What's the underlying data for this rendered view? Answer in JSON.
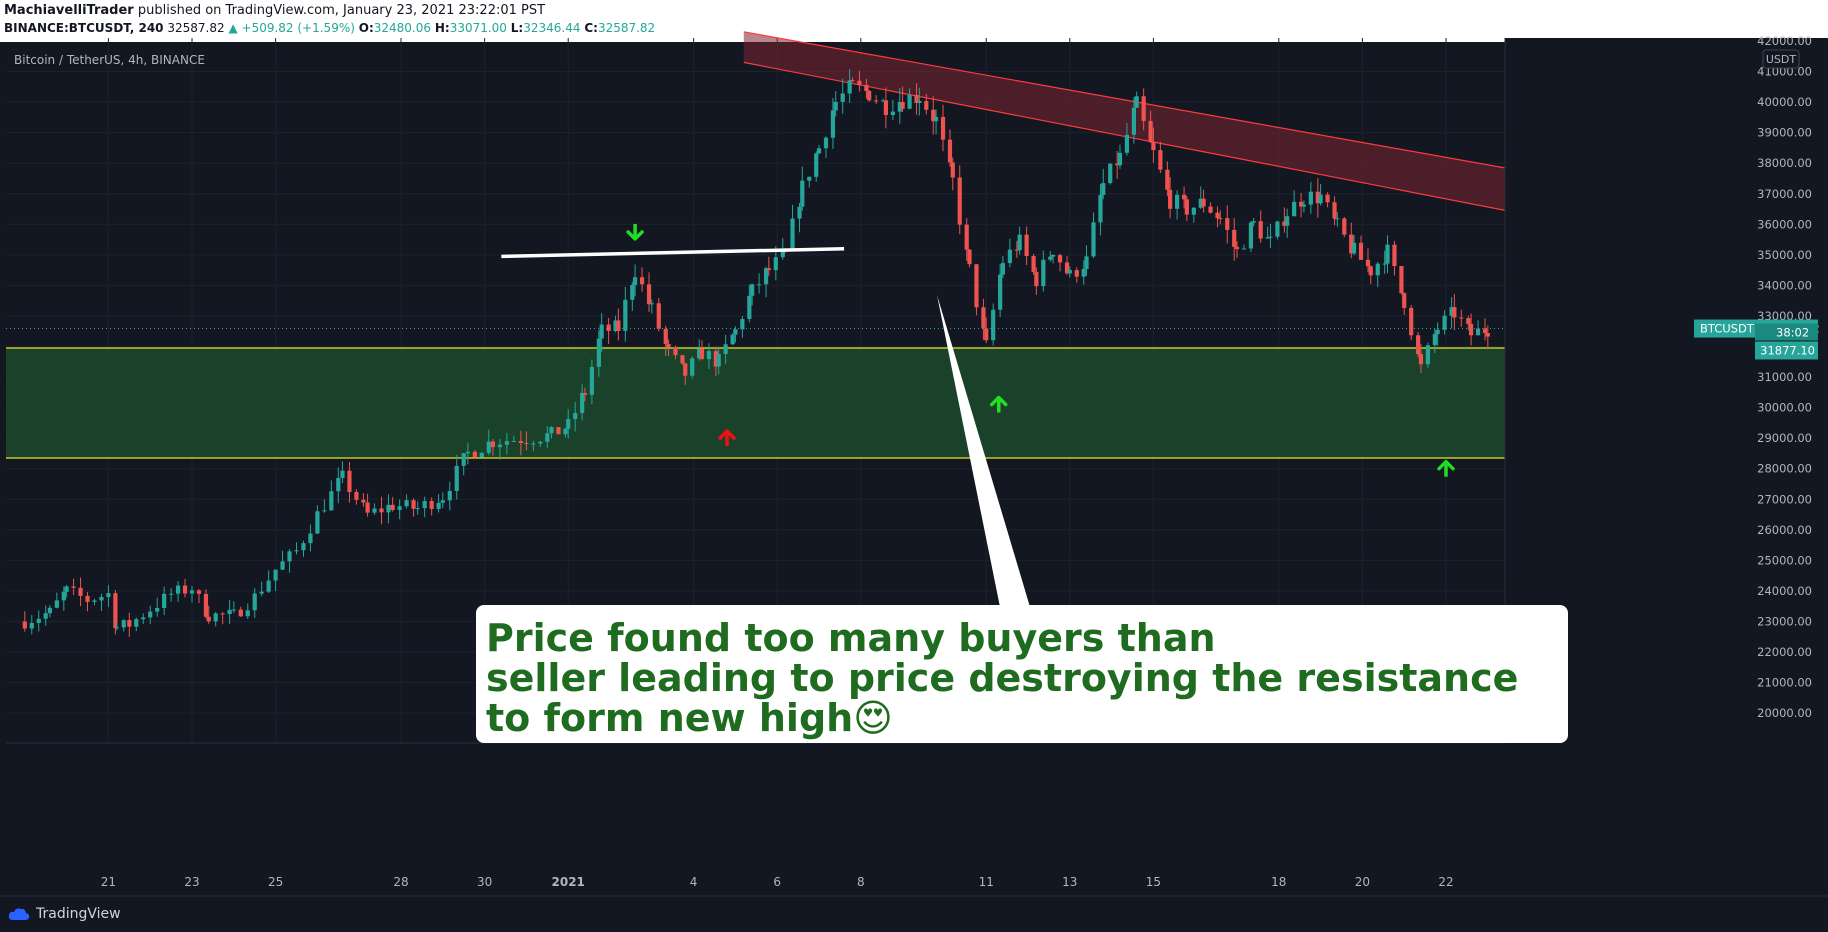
{
  "header": {
    "author": "MachiavelliTrader",
    "published_text": "published on TradingView.com, January 23, 2021 23:22:01 PST",
    "symbol_line": "BINANCE:BTCUSDT, 240",
    "last": "32587.82",
    "change": "▲ +509.82 (+1.59%)",
    "o_label": "O:",
    "o": "32480.06",
    "h_label": "H:",
    "h": "33071.00",
    "l_label": "L:",
    "l": "32346.44",
    "c_label": "C:",
    "c": "32587.82"
  },
  "chart_data": {
    "type": "candlestick",
    "title": "Bitcoin / TetherUS, 4h, BINANCE",
    "currency": "USDT",
    "timeframe": "4h",
    "ylim": [
      19200,
      42000
    ],
    "y_ticks": [
      20000,
      21000,
      22000,
      23000,
      24000,
      25000,
      26000,
      27000,
      28000,
      29000,
      30000,
      31000,
      32000,
      33000,
      34000,
      35000,
      36000,
      37000,
      38000,
      39000,
      40000,
      41000
    ],
    "y_tick_labels": [
      "20000.00",
      "21000.00",
      "22000.00",
      "23000.00",
      "24000.00",
      "25000.00",
      "26000.00",
      "27000.00",
      "28000.00",
      "29000.00",
      "30000.00",
      "31000.00",
      "32000.00",
      "33000.00",
      "34000.00",
      "35000.00",
      "36000.00",
      "37000.00",
      "38000.00",
      "39000.00",
      "40000.00",
      "41000.00"
    ],
    "top_tick_label": "42000.00",
    "x_ticks": [
      {
        "day": 21,
        "label": "21"
      },
      {
        "day": 23,
        "label": "23"
      },
      {
        "day": 25,
        "label": "25"
      },
      {
        "day": 28,
        "label": "28"
      },
      {
        "day": 30,
        "label": "30"
      },
      {
        "day": 32,
        "label": "2021"
      },
      {
        "day": 35,
        "label": "4"
      },
      {
        "day": 37,
        "label": "6"
      },
      {
        "day": 39,
        "label": "8"
      },
      {
        "day": 42,
        "label": "11"
      },
      {
        "day": 44,
        "label": "13"
      },
      {
        "day": 46,
        "label": "15"
      },
      {
        "day": 49,
        "label": "18"
      },
      {
        "day": 51,
        "label": "20"
      },
      {
        "day": 53,
        "label": "22"
      }
    ],
    "x_axis_note": "day index counted from Dec 1, 2020 (Jan 1 = 32)",
    "anchors": [
      [
        19.0,
        23000
      ],
      [
        19.6,
        23300
      ],
      [
        20.0,
        24000
      ],
      [
        20.5,
        23700
      ],
      [
        21.0,
        23900
      ],
      [
        21.2,
        22800
      ],
      [
        21.5,
        22900
      ],
      [
        22.0,
        23400
      ],
      [
        22.5,
        23900
      ],
      [
        23.0,
        24100
      ],
      [
        23.4,
        23200
      ],
      [
        24.0,
        23200
      ],
      [
        24.5,
        23800
      ],
      [
        25.0,
        24700
      ],
      [
        25.5,
        25300
      ],
      [
        26.0,
        26500
      ],
      [
        26.6,
        27700
      ],
      [
        27.2,
        26500
      ],
      [
        27.8,
        26800
      ],
      [
        28.4,
        26700
      ],
      [
        29.0,
        27100
      ],
      [
        29.6,
        28500
      ],
      [
        30.2,
        28900
      ],
      [
        31.0,
        29000
      ],
      [
        31.6,
        29100
      ],
      [
        32.0,
        29400
      ],
      [
        32.4,
        30500
      ],
      [
        32.8,
        32500
      ],
      [
        33.2,
        32600
      ],
      [
        33.6,
        34500
      ],
      [
        34.0,
        33200
      ],
      [
        34.4,
        31800
      ],
      [
        34.8,
        31100
      ],
      [
        35.2,
        31800
      ],
      [
        35.6,
        31500
      ],
      [
        36.0,
        32500
      ],
      [
        36.4,
        33800
      ],
      [
        36.8,
        34500
      ],
      [
        37.2,
        35000
      ],
      [
        37.6,
        37200
      ],
      [
        38.0,
        38500
      ],
      [
        38.4,
        40000
      ],
      [
        38.8,
        40500
      ],
      [
        39.2,
        40300
      ],
      [
        39.6,
        39900
      ],
      [
        40.0,
        40100
      ],
      [
        40.4,
        40200
      ],
      [
        40.8,
        39400
      ],
      [
        41.2,
        37400
      ],
      [
        41.6,
        34500
      ],
      [
        42.0,
        32000
      ],
      [
        42.4,
        34800
      ],
      [
        42.8,
        35400
      ],
      [
        43.2,
        34200
      ],
      [
        43.6,
        35200
      ],
      [
        44.0,
        34300
      ],
      [
        44.4,
        34800
      ],
      [
        44.8,
        37300
      ],
      [
        45.2,
        38200
      ],
      [
        45.6,
        39900
      ],
      [
        46.0,
        38300
      ],
      [
        46.4,
        36800
      ],
      [
        46.8,
        36500
      ],
      [
        47.2,
        36700
      ],
      [
        47.6,
        36200
      ],
      [
        48.0,
        35100
      ],
      [
        48.4,
        36000
      ],
      [
        48.8,
        35400
      ],
      [
        49.2,
        36400
      ],
      [
        49.6,
        36900
      ],
      [
        50.0,
        36900
      ],
      [
        50.4,
        35900
      ],
      [
        50.8,
        35100
      ],
      [
        51.2,
        34500
      ],
      [
        51.6,
        35100
      ],
      [
        52.0,
        33500
      ],
      [
        52.4,
        31300
      ],
      [
        52.8,
        32600
      ],
      [
        53.2,
        33100
      ],
      [
        53.6,
        32400
      ],
      [
        54.0,
        32588
      ]
    ],
    "annotations": {
      "support_zone": {
        "top": 31950,
        "bottom": 28350,
        "color": "#1c4a2c"
      },
      "resistance_channel": {
        "line1": [
          [
            36.2,
            42300
          ],
          [
            55.0,
            37700
          ]
        ],
        "line2": [
          [
            36.2,
            41300
          ],
          [
            55.0,
            36300
          ]
        ],
        "color": "#7a2530"
      },
      "breakout_line": {
        "from": [
          30.4,
          34950
        ],
        "to": [
          38.6,
          35200
        ]
      },
      "arrows": [
        {
          "day": 33.6,
          "price": 35750,
          "dir": "down",
          "color": "#22dd22"
        },
        {
          "day": 35.8,
          "price": 29000,
          "dir": "up",
          "color": "#ee1111"
        },
        {
          "day": 42.3,
          "price": 30100,
          "dir": "up",
          "color": "#22dd22"
        },
        {
          "day": 53.0,
          "price": 28000,
          "dir": "up",
          "color": "#22dd22"
        }
      ],
      "callout_text_lines": [
        "Price found too many buyers than",
        "seller leading to price destroying the resistance",
        " to form new high😍"
      ]
    },
    "price_labels": {
      "symbol": "BTCUSDT",
      "last": "32587.82",
      "countdown": "38:02",
      "level": "31877.10"
    },
    "grid": true
  },
  "footer": {
    "brand": "TradingView"
  },
  "colors": {
    "bg": "#131722",
    "up": "#26a69a",
    "down": "#ef5350",
    "axis_text": "#b2b5be",
    "grid": "#1e222d",
    "support_line": "#e6e62a",
    "callout_text": "#1f6b1f"
  }
}
